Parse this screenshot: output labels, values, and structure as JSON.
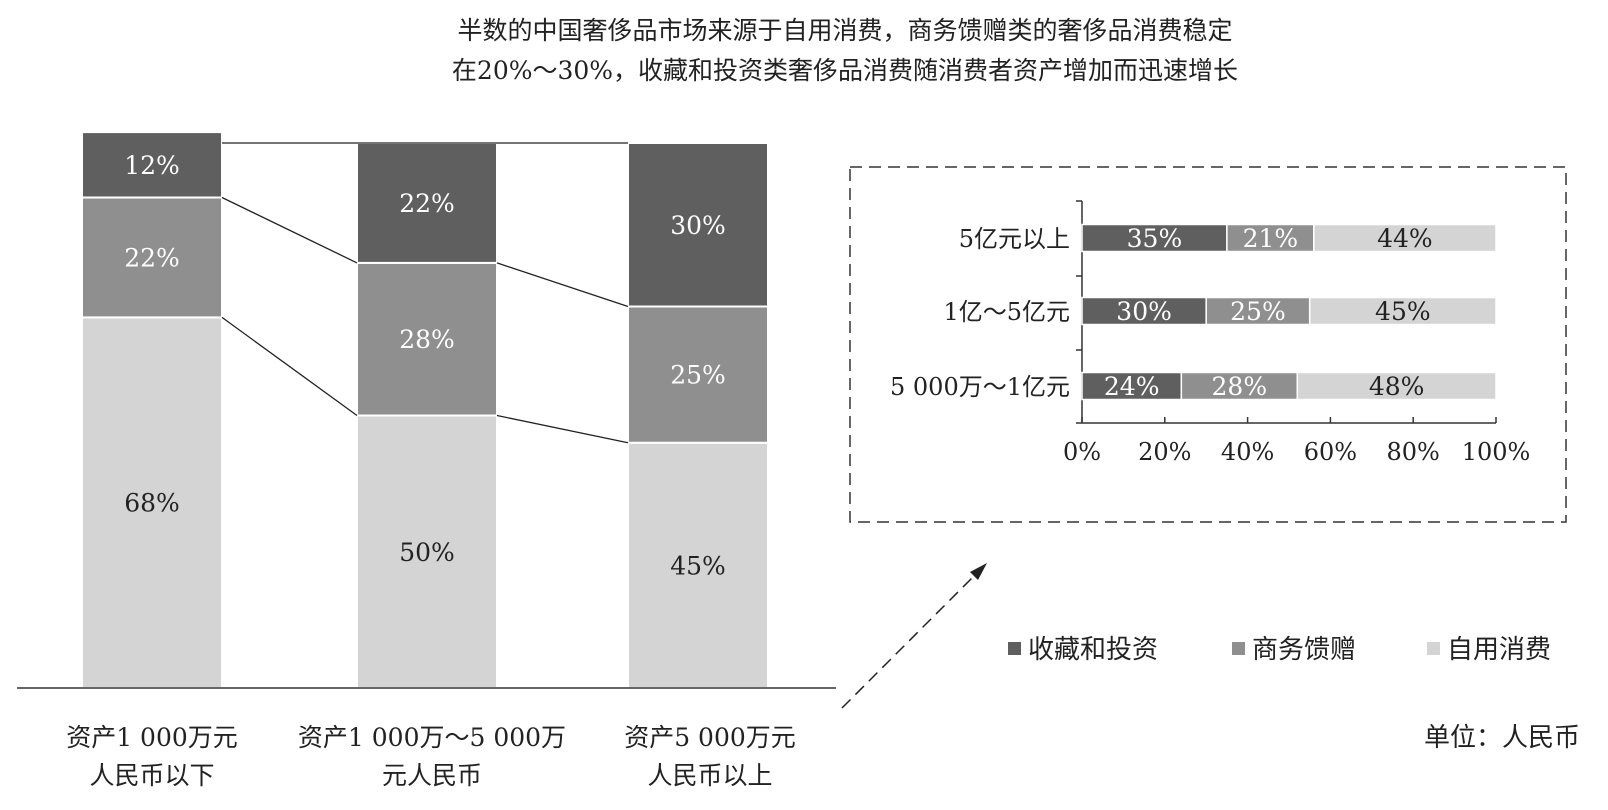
{
  "title": {
    "line1": "半数的中国奢侈品市场来源于自用消费，商务馈赠类的奢侈品消费稳定",
    "line2": "在20%～30%，收藏和投资类奢侈品消费随消费者资产增加而迅速增长"
  },
  "unit_label": "单位：人民币",
  "legend": [
    {
      "label": "收藏和投资",
      "color": "#5f5f5f"
    },
    {
      "label": "商务馈赠",
      "color": "#8f8f8f"
    },
    {
      "label": "自用消费",
      "color": "#d4d4d4"
    }
  ],
  "chart_data": [
    {
      "type": "bar",
      "stacked": true,
      "categories": [
        [
          "资产1 000万元",
          "人民币以下"
        ],
        [
          "资产1 000万～5 000万",
          "元人民币"
        ],
        [
          "资产5 000万元",
          "人民币以上"
        ]
      ],
      "series": [
        {
          "name": "自用消费",
          "values": [
            68,
            50,
            45
          ],
          "labels": [
            "68%",
            "50%",
            "45%"
          ],
          "color": "#d4d4d4",
          "label_color": "#222222"
        },
        {
          "name": "商务馈赠",
          "values": [
            22,
            28,
            25
          ],
          "labels": [
            "22%",
            "28%",
            "25%"
          ],
          "color": "#8f8f8f",
          "label_color": "#ffffff"
        },
        {
          "name": "收藏和投资",
          "values": [
            12,
            22,
            30
          ],
          "labels": [
            "12%",
            "22%",
            "30%"
          ],
          "color": "#5f5f5f",
          "label_color": "#ffffff"
        }
      ],
      "ylim": [
        0,
        100
      ],
      "connector_lines": true
    },
    {
      "type": "bar",
      "orientation": "horizontal",
      "stacked": true,
      "categories": [
        "5亿元以上",
        "1亿～5亿元",
        "5 000万～1亿元"
      ],
      "series": [
        {
          "name": "收藏和投资",
          "values": [
            35,
            30,
            24
          ],
          "labels": [
            "35%",
            "30%",
            "24%"
          ],
          "color": "#5f5f5f",
          "label_color": "#ffffff"
        },
        {
          "name": "商务馈赠",
          "values": [
            21,
            25,
            28
          ],
          "labels": [
            "21%",
            "25%",
            "28%"
          ],
          "color": "#8f8f8f",
          "label_color": "#ffffff"
        },
        {
          "name": "自用消费",
          "values": [
            44,
            45,
            48
          ],
          "labels": [
            "44%",
            "45%",
            "48%"
          ],
          "color": "#d4d4d4",
          "label_color": "#222222"
        }
      ],
      "xlim": [
        0,
        100
      ],
      "xticks": [
        "0%",
        "20%",
        "40%",
        "60%",
        "80%",
        "100%"
      ]
    }
  ]
}
